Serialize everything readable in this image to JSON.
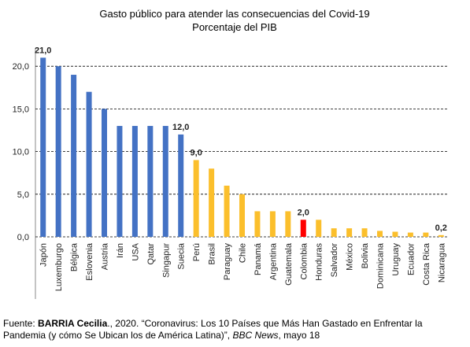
{
  "chart_data": {
    "type": "bar",
    "title": "Gasto público para atender las consecuencias del Covid-19",
    "subtitle": "Porcentaje del PIB",
    "categories": [
      "Japón",
      "Luxemburgo",
      "Bélgica",
      "Eslovenia",
      "Austria",
      "Irán",
      "USA",
      "Qatar",
      "Singapur",
      "Suecia",
      "Perú",
      "Brasil",
      "Paraguay",
      "Chile",
      "Panamá",
      "Argentina",
      "Guatemala",
      "Colombia",
      "Honduras",
      "Salvador",
      "México",
      "Bolivia",
      "Dominicana",
      "Uruguay",
      "Ecuador",
      "Costa Rica",
      "Nicaragua"
    ],
    "values": [
      21,
      20,
      19,
      17,
      15,
      13,
      13,
      13,
      13,
      12,
      9,
      8,
      6,
      5,
      3,
      3,
      3,
      2,
      2,
      1,
      1,
      1,
      0.7,
      0.6,
      0.5,
      0.5,
      0.2
    ],
    "value_labels": [
      "21,0",
      null,
      null,
      null,
      null,
      null,
      null,
      null,
      null,
      "12,0",
      "9,0",
      null,
      null,
      null,
      null,
      null,
      null,
      "2,0",
      null,
      null,
      null,
      null,
      null,
      null,
      null,
      null,
      "0,2"
    ],
    "colors": [
      "#4472c4",
      "#4472c4",
      "#4472c4",
      "#4472c4",
      "#4472c4",
      "#4472c4",
      "#4472c4",
      "#4472c4",
      "#4472c4",
      "#4472c4",
      "#fbbf2c",
      "#fbbf2c",
      "#fbbf2c",
      "#fbbf2c",
      "#fbbf2c",
      "#fbbf2c",
      "#fbbf2c",
      "#ff0000",
      "#fbbf2c",
      "#fbbf2c",
      "#fbbf2c",
      "#fbbf2c",
      "#fbbf2c",
      "#fbbf2c",
      "#fbbf2c",
      "#fbbf2c",
      "#fbbf2c"
    ],
    "ylim": [
      0,
      22
    ],
    "yticks": [
      {
        "value": 0,
        "label": "0,0"
      },
      {
        "value": 5,
        "label": "5,0"
      },
      {
        "value": 10,
        "label": "10,0"
      },
      {
        "value": 15,
        "label": "15,0"
      },
      {
        "value": 20,
        "label": "20,0"
      }
    ],
    "grid": true
  },
  "source": {
    "parts": [
      "Fuente: ",
      "BARRIA Cecilia",
      "., 2020. “Coronavirus: Los 10 Países que Más Han Gastado en Enfrentar la Pandemia (y cómo Se Ubican los de América Latina)”, ",
      "BBC News",
      ", mayo 18"
    ]
  }
}
